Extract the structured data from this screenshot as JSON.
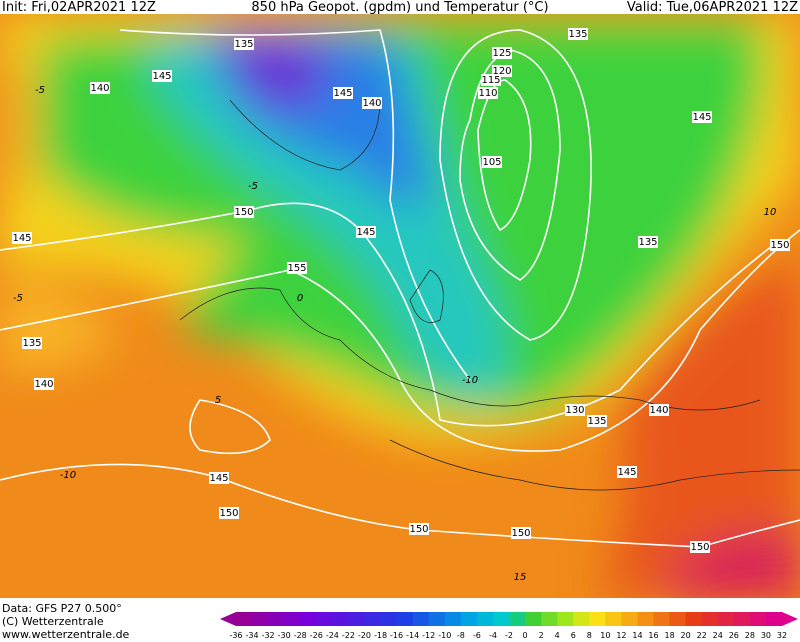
{
  "header": {
    "init": "Init: Fri,02APR2021 12Z",
    "title": "850 hPa Geopot. (gpdm) und Temperatur (°C)",
    "valid": "Valid: Tue,06APR2021 12Z"
  },
  "footer": {
    "data": "Data: GFS P27 0.500°",
    "copyright": "(C) Wetterzentrale",
    "url": "www.wetterzentrale.de"
  },
  "colorbar": {
    "labels": [
      "-36",
      "-34",
      "-32",
      "-30",
      "-28",
      "-26",
      "-24",
      "-22",
      "-20",
      "-18",
      "-16",
      "-14",
      "-12",
      "-10",
      "-8",
      "-6",
      "-4",
      "-2",
      "0",
      "2",
      "4",
      "6",
      "8",
      "10",
      "12",
      "14",
      "16",
      "18",
      "20",
      "22",
      "24",
      "26",
      "28",
      "30",
      "32"
    ]
  },
  "geopotential_labels": [
    "135",
    "145",
    "140",
    "145",
    "140",
    "150",
    "145",
    "145",
    "155",
    "135",
    "140",
    "145",
    "150",
    "150",
    "150",
    "150",
    "145",
    "130",
    "135",
    "140",
    "135",
    "150",
    "145",
    "135",
    "125",
    "120",
    "115",
    "110",
    "105"
  ],
  "temperature_labels": [
    "-5",
    "0",
    "-10",
    "5",
    "10",
    "-10",
    "15",
    "-5",
    "-5"
  ]
}
